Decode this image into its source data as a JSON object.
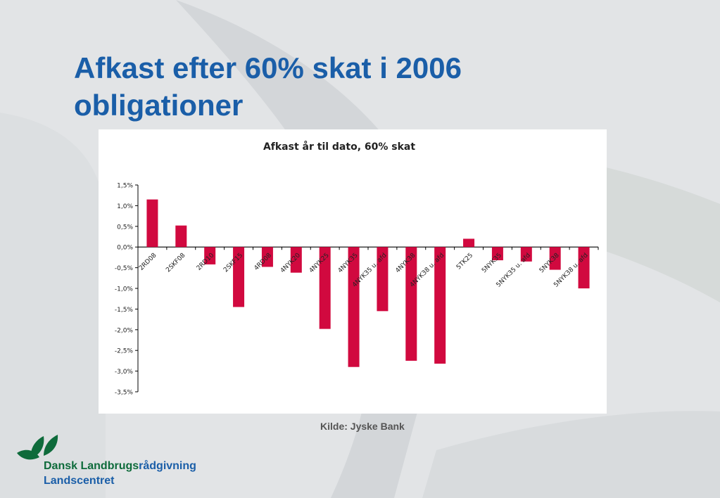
{
  "slide": {
    "title_line1": "Afkast efter 60% skat i 2006",
    "title_line2": "obligationer",
    "source": "Kilde: Jyske Bank",
    "logo_line1_part1": "Dansk Landbrugs",
    "logo_line1_part2": "rådgivning",
    "logo_line2": "Landscentret",
    "colors": {
      "title": "#1a5ea8",
      "bar": "#d1093f",
      "logo_green": "#0e6b3b",
      "background": "#e2e4e6"
    }
  },
  "chart_data": {
    "type": "bar",
    "title": "Afkast år til dato, 60% skat",
    "xlabel": "",
    "ylabel": "",
    "ylim": [
      -3.5,
      1.5
    ],
    "yticks": [
      1.5,
      1.0,
      0.5,
      0.0,
      -0.5,
      -1.0,
      -1.5,
      -2.0,
      -2.5,
      -3.0,
      -3.5
    ],
    "ytick_labels": [
      "1,5%",
      "1,0%",
      "0,5%",
      "0,0%",
      "-0,5%",
      "-1,0%",
      "-1,5%",
      "-2,0%",
      "-2,5%",
      "-3,0%",
      "-3,5%"
    ],
    "categories": [
      "2RD08",
      "2SKF08",
      "2RD10",
      "2SKF15",
      "4RD08",
      "4NYK20",
      "4NYK25",
      "4NYK35",
      "4NYK35 u. afd",
      "4NYK38",
      "4NYK38 u. afd",
      "5TK25",
      "5NYK35",
      "5NYK35 u. afd",
      "5NYK38",
      "5NYK38 u. afd"
    ],
    "values": [
      1.15,
      0.52,
      -0.42,
      -1.45,
      -0.48,
      -0.62,
      -1.98,
      -2.9,
      -1.55,
      -2.75,
      -2.82,
      0.2,
      -0.32,
      -0.35,
      -0.55,
      -1.0
    ],
    "grid": false,
    "legend": "none",
    "color": "#d1093f"
  }
}
